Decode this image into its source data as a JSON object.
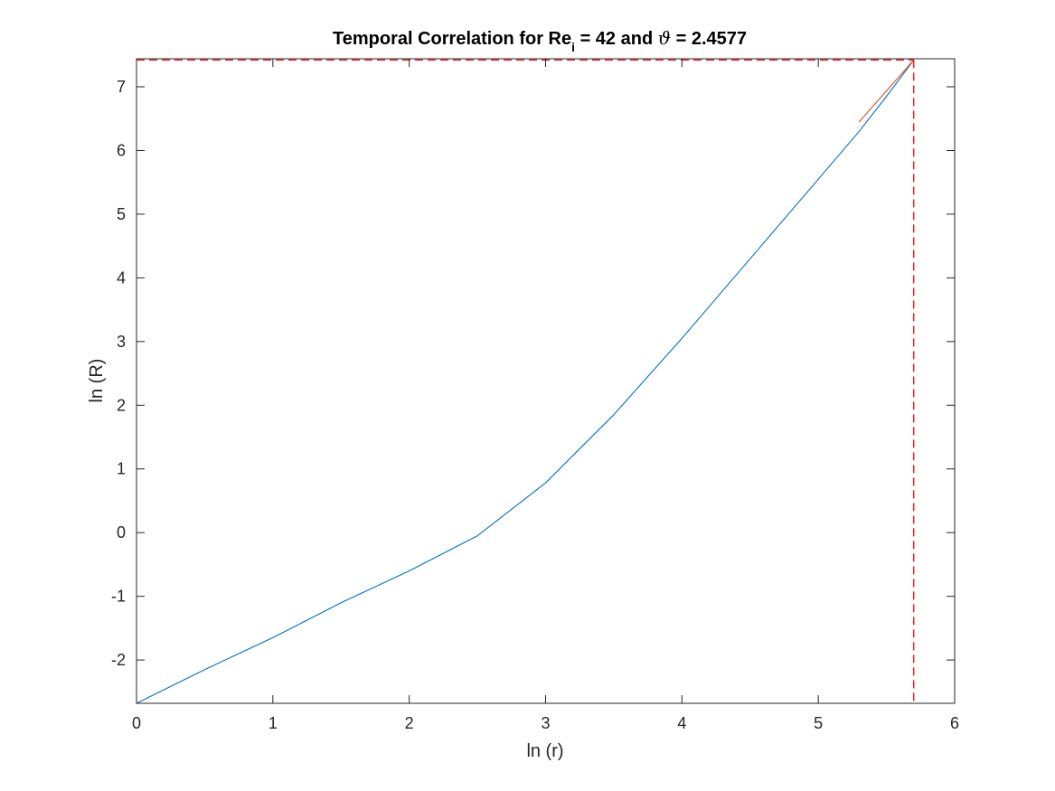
{
  "chart_data": {
    "type": "line",
    "title": {
      "prefix": "Temporal Correlation for Re",
      "subscript": "i",
      "middle": " = 42 and ",
      "symbol": "ϑ",
      "suffix": " = 2.4577"
    },
    "xlabel": "ln (r)",
    "ylabel": "ln (R)",
    "xlim": [
      0,
      6
    ],
    "ylim": [
      -2.68,
      7.44
    ],
    "xticks": [
      0,
      1,
      2,
      3,
      4,
      5,
      6
    ],
    "yticks": [
      -2,
      -1,
      0,
      1,
      2,
      3,
      4,
      5,
      6,
      7
    ],
    "grid": false,
    "box": true,
    "series": [
      {
        "color": "#0072BD",
        "style": "solid",
        "points": [
          [
            0,
            -2.68
          ],
          [
            0.5,
            -2.15
          ],
          [
            1,
            -1.65
          ],
          [
            1.5,
            -1.1
          ],
          [
            2,
            -0.6
          ],
          [
            2.5,
            -0.05
          ],
          [
            3,
            0.78
          ],
          [
            3.5,
            1.85
          ],
          [
            4,
            3.05
          ],
          [
            4.5,
            4.3
          ],
          [
            5,
            5.55
          ],
          [
            5.3,
            6.3
          ],
          [
            5.5,
            6.85
          ],
          [
            5.7,
            7.42
          ]
        ]
      },
      {
        "color": "#D95319",
        "style": "solid",
        "points": [
          [
            5.3,
            6.45
          ],
          [
            5.7,
            7.42
          ]
        ]
      }
    ],
    "reference_lines": [
      {
        "orientation": "horizontal",
        "value": 7.42,
        "color": "#FF0000",
        "style": "dashed"
      },
      {
        "orientation": "vertical",
        "value": 5.7,
        "color": "#FF0000",
        "style": "dashed"
      }
    ]
  }
}
